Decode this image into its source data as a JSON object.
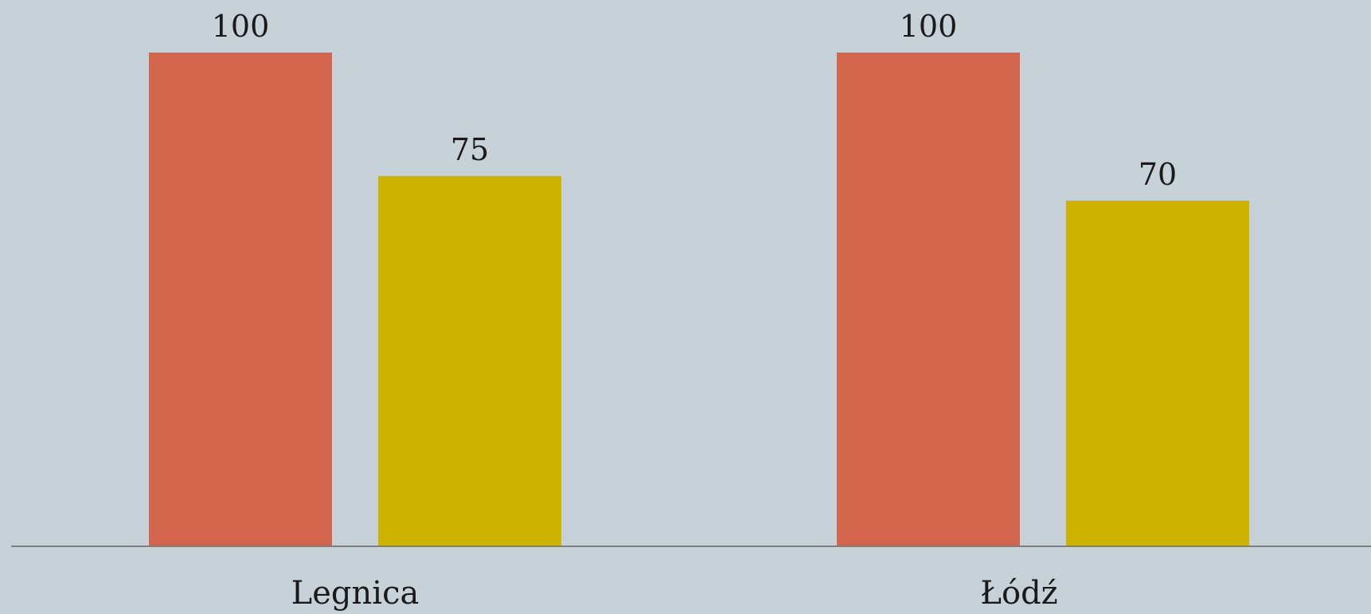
{
  "chart_data": {
    "type": "bar",
    "categories": [
      "Legnica",
      "Łódź"
    ],
    "series": [
      {
        "color": "#D2654B",
        "values": [
          100,
          100
        ]
      },
      {
        "color": "#CDB300",
        "values": [
          75,
          70
        ]
      }
    ],
    "ylim": [
      0,
      100
    ],
    "grid": false,
    "legend": "none",
    "data_labels": true
  },
  "colors": {
    "background": "#C6D2D8",
    "axis": "#7A7F82"
  }
}
